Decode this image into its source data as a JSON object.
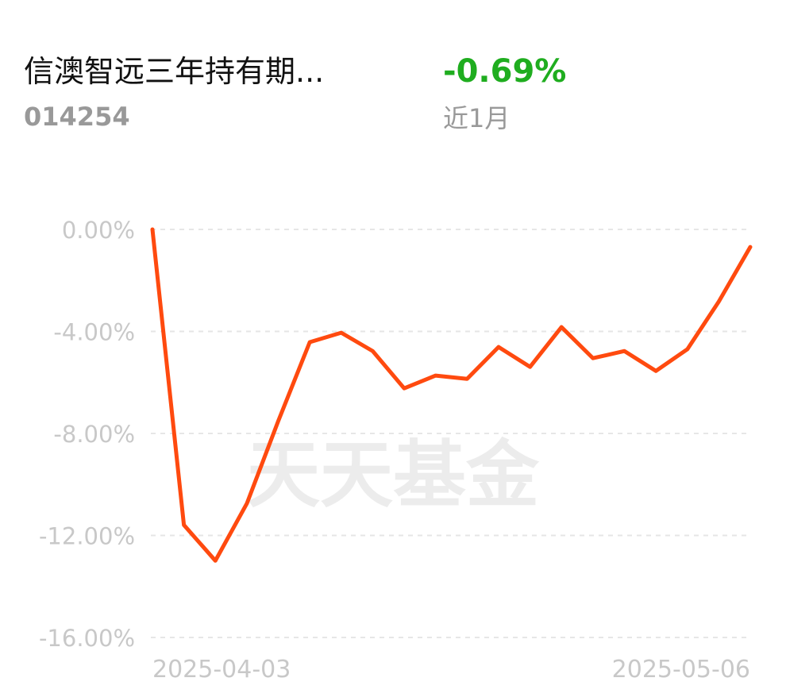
{
  "header": {
    "fund_name": "信澳智远三年持有期...",
    "fund_code": "014254",
    "change": "-0.69%",
    "period": "近1月"
  },
  "chart_data": {
    "type": "line",
    "watermark": "天天基金",
    "categories": [
      "2025-04-03",
      null,
      null,
      null,
      null,
      null,
      null,
      null,
      null,
      null,
      null,
      null,
      null,
      null,
      null,
      null,
      null,
      null,
      null,
      "2025-05-06"
    ],
    "series": [
      {
        "name": null,
        "color": "#ff4a0f",
        "values": [
          0,
          -11.59,
          -12.99,
          -10.75,
          -7.51,
          -4.42,
          -4.05,
          -4.77,
          -6.23,
          -5.73,
          -5.86,
          -4.61,
          -5.39,
          -3.83,
          -5.05,
          -4.77,
          -5.55,
          -4.7,
          -2.83,
          -0.69
        ]
      }
    ],
    "ylim": [
      -16,
      0
    ],
    "yticks": [
      {
        "value": 0,
        "label": "0.00%"
      },
      {
        "value": -4,
        "label": "-4.00%"
      },
      {
        "value": -8,
        "label": "-8.00%"
      },
      {
        "value": -12,
        "label": "-12.00%"
      },
      {
        "value": -16,
        "label": "-16.00%"
      }
    ],
    "grid": true
  }
}
